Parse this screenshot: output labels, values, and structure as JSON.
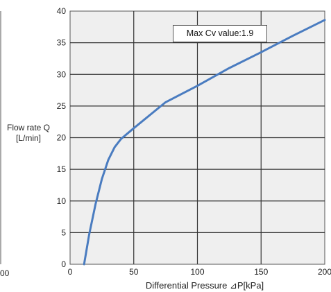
{
  "chart_data": {
    "type": "line",
    "xlabel": "Differential Pressure ⊿P[kPa]",
    "ylabel_line1": "Flow rate Q",
    "ylabel_line2": "[L/min]",
    "xlim": [
      0,
      200
    ],
    "ylim": [
      0,
      40
    ],
    "x_ticks": [
      0,
      50,
      100,
      150,
      200
    ],
    "x_tick_labels": [
      "0",
      "50",
      "100",
      "150",
      "200"
    ],
    "y_ticks": [
      0,
      5,
      10,
      15,
      20,
      25,
      30,
      35,
      40
    ],
    "y_tick_labels": [
      "0",
      "5",
      "10",
      "15",
      "20",
      "25",
      "30",
      "35",
      "40"
    ],
    "grid": true,
    "annotation": "Max Cv value:1.9",
    "series": [
      {
        "color": "#4a7cc0",
        "x": [
          11,
          15,
          20,
          25,
          30,
          35,
          40,
          50,
          75,
          100,
          125,
          150,
          175,
          200
        ],
        "y": [
          0,
          4.7,
          9.5,
          13.5,
          16.5,
          18.5,
          19.8,
          21.5,
          25.6,
          28.2,
          31.0,
          33.5,
          36.1,
          38.6
        ]
      }
    ]
  },
  "left_fragment_label": "00"
}
